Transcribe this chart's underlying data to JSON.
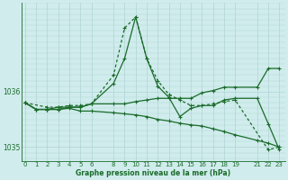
{
  "bg_color": "#d0ecec",
  "grid_color": "#b0d4d4",
  "line_color": "#1a6b2a",
  "title": "Graphe pression niveau de la mer (hPa)",
  "ylim": [
    1034.75,
    1037.6
  ],
  "xlim": [
    -0.3,
    23.5
  ],
  "yticks": [
    1035,
    1036
  ],
  "xticks": [
    0,
    1,
    2,
    3,
    4,
    5,
    6,
    8,
    9,
    10,
    11,
    12,
    13,
    14,
    15,
    16,
    17,
    18,
    19,
    21,
    22,
    23
  ],
  "series": [
    {
      "x": [
        0,
        2,
        3,
        4,
        5,
        6,
        8,
        9,
        10,
        11,
        12,
        13,
        14,
        15,
        16,
        17,
        18,
        19,
        22,
        23
      ],
      "y": [
        1035.8,
        1035.72,
        1035.72,
        1035.75,
        1035.75,
        1035.78,
        1036.3,
        1037.15,
        1037.35,
        1036.6,
        1036.2,
        1035.95,
        1035.85,
        1035.75,
        1035.75,
        1035.78,
        1035.82,
        1035.85,
        1034.95,
        1035.0
      ],
      "style": "dotted"
    },
    {
      "x": [
        0,
        1,
        2,
        3,
        4,
        5,
        6,
        8,
        9,
        10,
        11,
        12,
        13,
        14,
        15,
        16,
        17,
        18,
        19,
        21,
        22,
        23
      ],
      "y": [
        1035.8,
        1035.68,
        1035.68,
        1035.68,
        1035.72,
        1035.72,
        1035.78,
        1036.15,
        1036.6,
        1037.35,
        1036.6,
        1036.1,
        1035.9,
        1035.55,
        1035.7,
        1035.75,
        1035.75,
        1035.85,
        1035.88,
        1035.88,
        1035.42,
        1034.95
      ],
      "style": "solid"
    },
    {
      "x": [
        0,
        1,
        2,
        3,
        4,
        5,
        6,
        8,
        9,
        10,
        11,
        12,
        13,
        14,
        15,
        16,
        17,
        18,
        19,
        21,
        22,
        23
      ],
      "y": [
        1035.8,
        1035.68,
        1035.68,
        1035.68,
        1035.7,
        1035.65,
        1035.65,
        1035.62,
        1035.6,
        1035.58,
        1035.55,
        1035.5,
        1035.47,
        1035.43,
        1035.4,
        1035.38,
        1035.33,
        1035.28,
        1035.22,
        1035.12,
        1035.07,
        1035.0
      ],
      "style": "solid"
    },
    {
      "x": [
        0,
        1,
        2,
        3,
        4,
        5,
        6,
        8,
        9,
        10,
        11,
        12,
        13,
        14,
        15,
        16,
        17,
        18,
        19,
        21,
        22,
        23
      ],
      "y": [
        1035.8,
        1035.68,
        1035.68,
        1035.72,
        1035.72,
        1035.72,
        1035.78,
        1035.78,
        1035.78,
        1035.82,
        1035.85,
        1035.88,
        1035.88,
        1035.88,
        1035.88,
        1035.98,
        1036.02,
        1036.08,
        1036.08,
        1036.08,
        1036.42,
        1036.42
      ],
      "style": "solid"
    }
  ]
}
